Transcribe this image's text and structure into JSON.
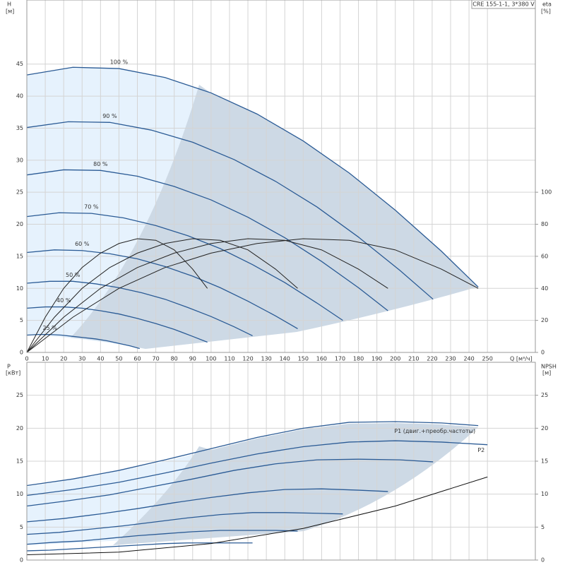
{
  "chart_data": [
    {
      "type": "line",
      "title": "CRE 155-1-1, 3*380 V",
      "xlabel": "Q [м³/ч]",
      "ylabel": "H",
      "yunit": "[м]",
      "y2label": "eta",
      "y2unit": "[%]",
      "xlim": [
        0,
        276
      ],
      "xticks": [
        0,
        10,
        20,
        30,
        40,
        50,
        60,
        70,
        80,
        90,
        100,
        110,
        120,
        130,
        140,
        150,
        160,
        170,
        180,
        190,
        200,
        210,
        220,
        230,
        240,
        250
      ],
      "ylim": [
        0,
        55
      ],
      "yticks": [
        0,
        5,
        10,
        15,
        20,
        25,
        30,
        35,
        40,
        45
      ],
      "y2lim": [
        0,
        220
      ],
      "y2ticks": [
        0,
        20,
        40,
        60,
        80,
        100
      ],
      "grid": true,
      "series": [
        {
          "name": "100 %",
          "color": "#2b5b95",
          "x": [
            0,
            25,
            50,
            75,
            100,
            125,
            150,
            175,
            200,
            225,
            245
          ],
          "values": [
            43.3,
            44.5,
            44.3,
            42.9,
            40.5,
            37.2,
            33.0,
            28.0,
            22.2,
            15.8,
            10.2
          ]
        },
        {
          "name": "90 %",
          "color": "#2b5b95",
          "x": [
            0,
            22.5,
            45,
            67.5,
            90,
            112.5,
            135,
            157.5,
            180,
            202.5,
            220.5
          ],
          "values": [
            35.1,
            36.0,
            35.9,
            34.7,
            32.8,
            30.1,
            26.7,
            22.7,
            18.0,
            12.8,
            8.3
          ]
        },
        {
          "name": "80 %",
          "color": "#2b5b95",
          "x": [
            0,
            20,
            40,
            60,
            80,
            100,
            120,
            140,
            160,
            180,
            196
          ],
          "values": [
            27.7,
            28.5,
            28.4,
            27.5,
            25.9,
            23.8,
            21.1,
            17.9,
            14.2,
            10.1,
            6.5
          ]
        },
        {
          "name": "70 %",
          "color": "#2b5b95",
          "x": [
            0,
            17.5,
            35,
            52.5,
            70,
            87.5,
            105,
            122.5,
            140,
            157.5,
            171.5
          ],
          "values": [
            21.2,
            21.8,
            21.7,
            21.0,
            19.8,
            18.2,
            16.2,
            13.7,
            10.9,
            7.7,
            5.0
          ]
        },
        {
          "name": "60 %",
          "color": "#2b5b95",
          "x": [
            0,
            15,
            30,
            45,
            60,
            75,
            90,
            105,
            120,
            135,
            147
          ],
          "values": [
            15.6,
            16.0,
            15.9,
            15.4,
            14.6,
            13.4,
            11.9,
            10.1,
            8.0,
            5.7,
            3.7
          ]
        },
        {
          "name": "50 %",
          "color": "#2b5b95",
          "x": [
            0,
            12.5,
            25,
            37.5,
            50,
            62.5,
            75,
            87.5,
            100,
            112.5,
            122.5
          ],
          "values": [
            10.8,
            11.1,
            11.1,
            10.7,
            10.1,
            9.3,
            8.3,
            7.0,
            5.6,
            4.0,
            2.6
          ]
        },
        {
          "name": "40 %",
          "color": "#2b5b95",
          "x": [
            0,
            10,
            20,
            30,
            40,
            50,
            60,
            70,
            80,
            90,
            98
          ],
          "values": [
            6.9,
            7.1,
            7.1,
            6.9,
            6.5,
            6.0,
            5.3,
            4.5,
            3.6,
            2.5,
            1.6
          ]
        },
        {
          "name": "25 %",
          "color": "#2b5b95",
          "x": [
            0,
            6.25,
            12.5,
            18.75,
            25,
            31.25,
            37.5,
            43.75,
            50,
            56.25,
            61.25
          ],
          "values": [
            2.7,
            2.8,
            2.8,
            2.7,
            2.5,
            2.3,
            2.1,
            1.8,
            1.4,
            1.0,
            0.6
          ]
        },
        {
          "axis": "y2",
          "color": "#222",
          "x": [
            0,
            25,
            50,
            75,
            100,
            125,
            150,
            175,
            200,
            225,
            245
          ],
          "values": [
            0,
            22,
            40,
            53,
            62,
            68,
            71,
            70,
            64,
            52,
            40
          ]
        },
        {
          "axis": "y2",
          "color": "#222",
          "x": [
            0,
            20,
            40,
            60,
            80,
            100,
            120,
            140,
            160,
            180,
            196
          ],
          "values": [
            0,
            22,
            40,
            53,
            62,
            68,
            71,
            70,
            64,
            52,
            40
          ]
        },
        {
          "axis": "y2",
          "color": "#222",
          "x": [
            0,
            15,
            30,
            45,
            60,
            75,
            90,
            105,
            120,
            135,
            147
          ],
          "values": [
            0,
            22,
            40,
            53,
            62,
            68,
            71,
            70,
            64,
            52,
            40
          ]
        },
        {
          "axis": "y2",
          "color": "#222",
          "x": [
            0,
            10,
            20,
            30,
            40,
            50,
            60,
            70,
            80,
            90,
            98
          ],
          "values": [
            0,
            22,
            40,
            53,
            62,
            68,
            71,
            70,
            64,
            52,
            40
          ]
        }
      ]
    },
    {
      "type": "line",
      "ylabel": "P",
      "yunit": "[кВт]",
      "y2label": "NPSH",
      "y2unit": "[м]",
      "xlim": [
        0,
        276
      ],
      "ylim": [
        0,
        30
      ],
      "yticks": [
        0,
        5,
        10,
        15,
        20,
        25
      ],
      "y2lim": [
        0,
        30
      ],
      "y2ticks": [
        0,
        5,
        10,
        15,
        20,
        25
      ],
      "grid": true,
      "series": [
        {
          "name": "P1 (двиг.+преобр.частоты)",
          "color": "#2b5b95",
          "x": [
            0,
            25,
            50,
            75,
            100,
            125,
            150,
            175,
            200,
            225,
            245
          ],
          "values": [
            11.3,
            12.3,
            13.6,
            15.2,
            16.9,
            18.6,
            20.0,
            20.9,
            21.0,
            20.8,
            20.4
          ]
        },
        {
          "name": "P2",
          "color": "#2b5b95",
          "x": [
            0,
            25,
            50,
            75,
            100,
            125,
            150,
            175,
            200,
            225,
            250
          ],
          "values": [
            9.8,
            10.7,
            11.8,
            13.2,
            14.7,
            16.1,
            17.2,
            17.9,
            18.1,
            17.9,
            17.5
          ]
        },
        {
          "color": "#2b5b95",
          "x": [
            0,
            22.5,
            45,
            67.5,
            90,
            112.5,
            135,
            157.5,
            180,
            202.5,
            220.5
          ],
          "values": [
            8.2,
            9.0,
            9.9,
            11.1,
            12.3,
            13.6,
            14.6,
            15.2,
            15.3,
            15.2,
            14.9
          ]
        },
        {
          "color": "#2b5b95",
          "x": [
            0,
            20,
            40,
            60,
            80,
            100,
            120,
            140,
            160,
            180,
            196
          ],
          "values": [
            5.8,
            6.3,
            7.0,
            7.8,
            8.7,
            9.5,
            10.2,
            10.7,
            10.8,
            10.6,
            10.4
          ]
        },
        {
          "color": "#2b5b95",
          "x": [
            0,
            17.5,
            35,
            52.5,
            70,
            87.5,
            105,
            122.5,
            140,
            157.5,
            171.5
          ],
          "values": [
            3.9,
            4.2,
            4.7,
            5.2,
            5.8,
            6.4,
            6.9,
            7.2,
            7.2,
            7.1,
            7.0
          ]
        },
        {
          "color": "#2b5b95",
          "x": [
            0,
            15,
            30,
            45,
            60,
            75,
            90,
            105,
            120,
            135,
            147
          ],
          "values": [
            2.4,
            2.7,
            2.9,
            3.3,
            3.7,
            4.0,
            4.3,
            4.5,
            4.5,
            4.5,
            4.4
          ]
        },
        {
          "color": "#2b5b95",
          "x": [
            0,
            12.5,
            25,
            37.5,
            50,
            62.5,
            75,
            87.5,
            100,
            112.5,
            122.5
          ],
          "values": [
            1.4,
            1.5,
            1.7,
            1.9,
            2.1,
            2.3,
            2.5,
            2.6,
            2.6,
            2.6,
            2.6
          ]
        },
        {
          "axis": "y2",
          "color": "#111",
          "x": [
            0,
            50,
            100,
            150,
            200,
            250
          ],
          "values": [
            0.8,
            1.2,
            2.5,
            4.8,
            8.2,
            12.6
          ]
        }
      ]
    }
  ]
}
